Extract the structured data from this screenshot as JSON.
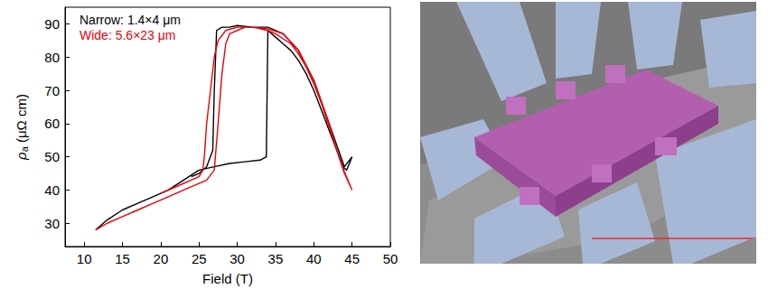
{
  "chart_data": {
    "type": "line",
    "x_label": "Field (T)",
    "y_label": "ρa (μΩ cm)",
    "xlim": [
      7.5,
      50
    ],
    "xticks": [
      10,
      15,
      20,
      25,
      30,
      35,
      40,
      45,
      50
    ],
    "ylim": [
      23,
      95
    ],
    "yticks": [
      30,
      40,
      50,
      60,
      70,
      80,
      90
    ],
    "grid": false,
    "legend": "top-left",
    "series": [
      {
        "name": "Narrow: 1.4×4 μm",
        "color": "#000000",
        "x": [
          11.5,
          13,
          15,
          17,
          19,
          21,
          23,
          25,
          27,
          29,
          31,
          33,
          33.8,
          34,
          35,
          36,
          37,
          38,
          39,
          40,
          41,
          42,
          43,
          43.8,
          44.3,
          45,
          44,
          42,
          40,
          38,
          36,
          34,
          32,
          30,
          29,
          28,
          27.3,
          27,
          26.8,
          26,
          25,
          24
        ],
        "values": [
          28,
          31,
          34,
          36,
          38,
          40,
          43,
          46,
          47,
          48,
          48.5,
          49,
          50,
          88,
          86,
          84,
          82,
          79,
          75,
          70,
          64,
          58,
          52,
          47,
          46,
          50,
          47,
          60,
          73,
          82,
          87,
          89,
          89,
          89.5,
          89,
          89,
          88,
          70,
          52,
          47,
          45,
          44
        ]
      },
      {
        "name": "Wide: 5.6×23 μm",
        "color": "#e8000b",
        "x": [
          11.5,
          13,
          15,
          17,
          19,
          21,
          23,
          25,
          26,
          27,
          27.5,
          28,
          28.5,
          29,
          30,
          31,
          32,
          33,
          34,
          35,
          36,
          37,
          38,
          39,
          40,
          41,
          42,
          43,
          44,
          45,
          44,
          43,
          42,
          40,
          38,
          36,
          34,
          32,
          30,
          28.5,
          27.5,
          27,
          26.5,
          26,
          25.7,
          25.5,
          25,
          24,
          22,
          20
        ],
        "values": [
          28,
          30,
          32,
          34,
          36,
          38,
          40,
          42,
          43,
          46,
          60,
          75,
          84,
          87,
          88,
          89,
          89,
          88.5,
          88,
          87,
          85.5,
          84,
          81,
          77,
          72,
          66,
          59,
          52,
          45,
          40,
          45.5,
          52,
          60,
          73,
          82,
          87,
          88.5,
          89,
          89,
          88,
          85,
          80,
          70,
          60,
          50,
          46,
          44,
          43,
          41,
          39
        ]
      }
    ]
  }
}
